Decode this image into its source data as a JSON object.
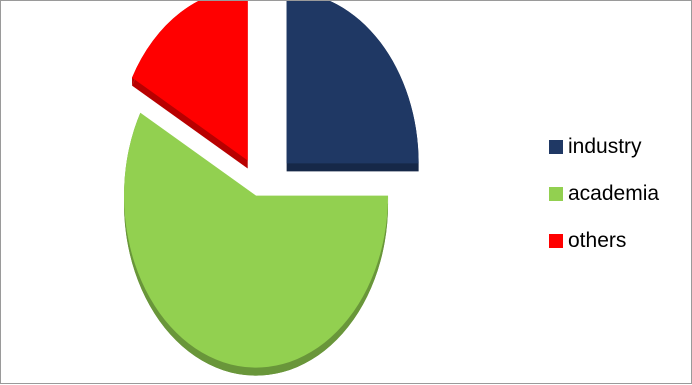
{
  "chart_data": {
    "type": "pie",
    "exploded": true,
    "style": "3d",
    "slices": [
      {
        "label": "industry",
        "value": 25,
        "color": "#1f3864"
      },
      {
        "label": "academia",
        "value": 58,
        "color": "#92d050"
      },
      {
        "label": "others",
        "value": 17,
        "color": "#ff0000"
      }
    ],
    "legend_position": "right"
  }
}
